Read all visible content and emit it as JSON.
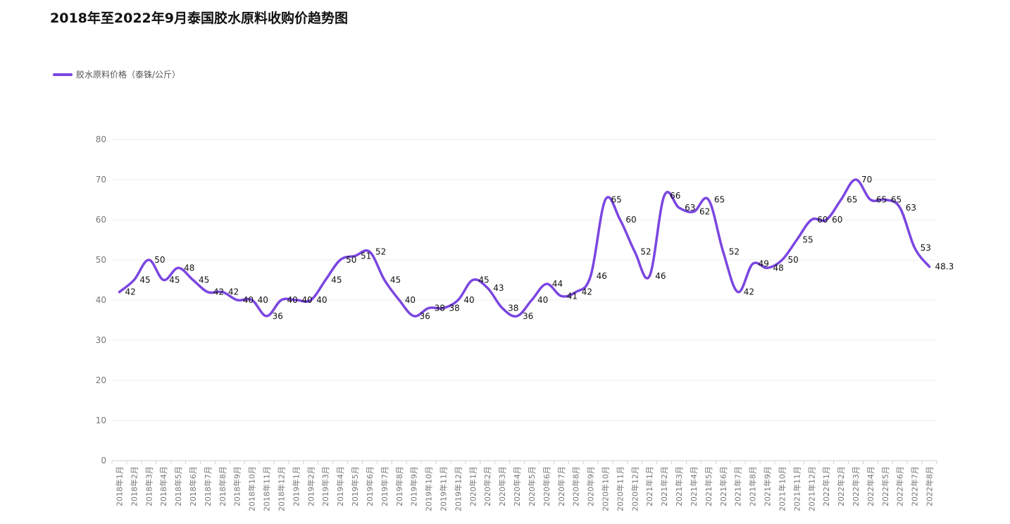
{
  "chart_data": {
    "type": "line",
    "title": "2018年至2022年9月泰国胶水原料收购价趋势图",
    "legend_position": "top-left",
    "grid": true,
    "ylim": [
      0,
      80
    ],
    "yticks": [
      "0",
      "10",
      "20",
      "30",
      "40",
      "50",
      "60",
      "70",
      "80"
    ],
    "categories": [
      "2018年1月",
      "2018年2月",
      "2018年3月",
      "2018年4月",
      "2018年5月",
      "2018年6月",
      "2018年7月",
      "2018年8月",
      "2018年9月",
      "2018年10月",
      "2018年11月",
      "2018年12月",
      "2019年1月",
      "2019年2月",
      "2019年3月",
      "2019年4月",
      "2019年5月",
      "2019年6月",
      "2019年7月",
      "2019年8月",
      "2019年9月",
      "2019年10月",
      "2019年11月",
      "2019年12月",
      "2020年1月",
      "2020年2月",
      "2020年3月",
      "2020年4月",
      "2020年5月",
      "2020年6月",
      "2020年7月",
      "2020年8月",
      "2020年9月",
      "2020年10月",
      "2020年11月",
      "2020年12月",
      "2021年1月",
      "2021年2月",
      "2021年3月",
      "2021年4月",
      "2021年5月",
      "2021年6月",
      "2021年7月",
      "2021年8月",
      "2021年9月",
      "2021年10月",
      "2021年11月",
      "2021年12月",
      "2022年1月",
      "2022年2月",
      "2022年3月",
      "2022年4月",
      "2022年5月",
      "2022年6月",
      "2022年7月",
      "2022年8月"
    ],
    "series": [
      {
        "name": "胶水原料价格（泰铢/公斤）",
        "color": "#7b46e0",
        "values": [
          42,
          45,
          50,
          45,
          48,
          45,
          42,
          42,
          40,
          40,
          36,
          40,
          40,
          40,
          45,
          50,
          51,
          52,
          45,
          40,
          36,
          38,
          38,
          40,
          45,
          43,
          38,
          36,
          40,
          44,
          41,
          42,
          46,
          65,
          60,
          52,
          46,
          66,
          63,
          62,
          65,
          52,
          42,
          49,
          48,
          50,
          55,
          60,
          60,
          65,
          70,
          65,
          65,
          63,
          53,
          48.3
        ],
        "labels": [
          "42",
          "45",
          "50",
          "45",
          "48",
          "45",
          "42",
          "42",
          "40",
          "40",
          "36",
          "40",
          "40",
          "40",
          "45",
          "50",
          "51",
          "52",
          "45",
          "40",
          "36",
          "38",
          "38",
          "40",
          "45",
          "43",
          "38",
          "36",
          "40",
          "44",
          "41",
          "42",
          "46",
          "65",
          "60",
          "52",
          "46",
          "66",
          "63",
          "62",
          "65",
          "52",
          "42",
          "49",
          "48",
          "50",
          "55",
          "60",
          "60",
          "65",
          "70",
          "65",
          "65",
          "63",
          "53",
          "48.3"
        ]
      }
    ]
  }
}
